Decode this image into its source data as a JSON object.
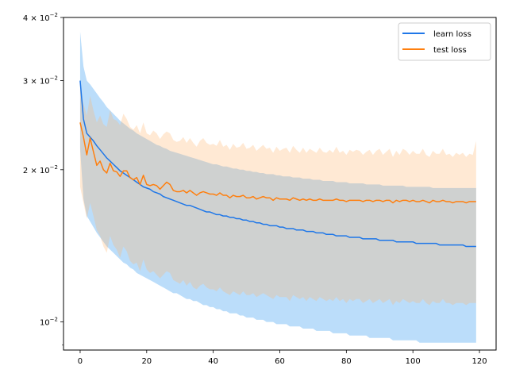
{
  "chart_data": {
    "type": "line",
    "title": "",
    "xlabel": "",
    "ylabel": "",
    "xlim": [
      -5,
      125
    ],
    "ylim": [
      0.0088,
      0.04
    ],
    "yscale": "log",
    "x_ticks": [
      0,
      20,
      40,
      60,
      80,
      100,
      120
    ],
    "x_tick_labels": [
      "0",
      "20",
      "40",
      "60",
      "80",
      "100",
      "120"
    ],
    "y_ticks": [
      0.01,
      0.02,
      0.03,
      0.04
    ],
    "y_tick_labels": [
      {
        "base": "10",
        "exp": "−2",
        "mantissa": ""
      },
      {
        "base": "10",
        "exp": "−2",
        "mantissa": "2"
      },
      {
        "base": "10",
        "exp": "−2",
        "mantissa": "3"
      },
      {
        "base": "10",
        "exp": "−2",
        "mantissa": "4"
      }
    ],
    "grid": false,
    "legend_position": "top-right",
    "x": [
      0,
      1,
      2,
      3,
      4,
      5,
      6,
      7,
      8,
      9,
      10,
      11,
      12,
      13,
      14,
      15,
      16,
      17,
      18,
      19,
      20,
      21,
      22,
      23,
      24,
      25,
      26,
      27,
      28,
      29,
      30,
      31,
      32,
      33,
      34,
      35,
      36,
      37,
      38,
      39,
      40,
      41,
      42,
      43,
      44,
      45,
      46,
      47,
      48,
      49,
      50,
      51,
      52,
      53,
      54,
      55,
      56,
      57,
      58,
      59,
      60,
      61,
      62,
      63,
      64,
      65,
      66,
      67,
      68,
      69,
      70,
      71,
      72,
      73,
      74,
      75,
      76,
      77,
      78,
      79,
      80,
      81,
      82,
      83,
      84,
      85,
      86,
      87,
      88,
      89,
      90,
      91,
      92,
      93,
      94,
      95,
      96,
      97,
      98,
      99,
      100,
      101,
      102,
      103,
      104,
      105,
      106,
      107,
      108,
      109,
      110,
      111,
      112,
      113,
      114,
      115,
      116,
      117,
      118,
      119
    ],
    "series": [
      {
        "name": "learn loss",
        "color": "#1f77e8",
        "band_color": "#1f8ff0",
        "values": [
          0.03,
          0.0252,
          0.0236,
          0.0232,
          0.0228,
          0.0223,
          0.0219,
          0.0215,
          0.0211,
          0.0208,
          0.0205,
          0.0202,
          0.0199,
          0.0197,
          0.0195,
          0.0193,
          0.0191,
          0.0189,
          0.0187,
          0.0185,
          0.0184,
          0.0183,
          0.0181,
          0.018,
          0.0179,
          0.0177,
          0.0176,
          0.0175,
          0.0174,
          0.0173,
          0.0172,
          0.0171,
          0.017,
          0.017,
          0.0169,
          0.0168,
          0.0167,
          0.0166,
          0.0165,
          0.0165,
          0.0164,
          0.0163,
          0.0163,
          0.0162,
          0.0162,
          0.0161,
          0.0161,
          0.016,
          0.016,
          0.0159,
          0.0159,
          0.0158,
          0.0158,
          0.0157,
          0.0157,
          0.0156,
          0.0156,
          0.0155,
          0.0155,
          0.0155,
          0.0154,
          0.0154,
          0.0153,
          0.0153,
          0.0153,
          0.0152,
          0.0152,
          0.0152,
          0.0151,
          0.0151,
          0.0151,
          0.015,
          0.015,
          0.015,
          0.0149,
          0.0149,
          0.0149,
          0.0148,
          0.0148,
          0.0148,
          0.0148,
          0.0147,
          0.0147,
          0.0147,
          0.0147,
          0.0146,
          0.0146,
          0.0146,
          0.0146,
          0.0146,
          0.0145,
          0.0145,
          0.0145,
          0.0145,
          0.0145,
          0.0144,
          0.0144,
          0.0144,
          0.0144,
          0.0144,
          0.0144,
          0.0143,
          0.0143,
          0.0143,
          0.0143,
          0.0143,
          0.0143,
          0.0143,
          0.0142,
          0.0142,
          0.0142,
          0.0142,
          0.0142,
          0.0142,
          0.0142,
          0.0142,
          0.0141,
          0.0141,
          0.0141,
          0.0141
        ],
        "lower": [
          0.022,
          0.0175,
          0.0162,
          0.0158,
          0.0154,
          0.015,
          0.0147,
          0.0144,
          0.0141,
          0.0139,
          0.0137,
          0.0135,
          0.0133,
          0.0131,
          0.013,
          0.0128,
          0.0127,
          0.0125,
          0.0124,
          0.0123,
          0.0122,
          0.0121,
          0.012,
          0.0119,
          0.0118,
          0.0117,
          0.0116,
          0.0115,
          0.0114,
          0.0114,
          0.0113,
          0.0112,
          0.0111,
          0.0111,
          0.011,
          0.011,
          0.0109,
          0.0108,
          0.0108,
          0.0107,
          0.0107,
          0.0106,
          0.0106,
          0.0105,
          0.0105,
          0.0104,
          0.0104,
          0.0104,
          0.0103,
          0.0103,
          0.0102,
          0.0102,
          0.0102,
          0.0101,
          0.0101,
          0.0101,
          0.01,
          0.01,
          0.01,
          0.0099,
          0.0099,
          0.0099,
          0.0099,
          0.0098,
          0.0098,
          0.0098,
          0.0098,
          0.0097,
          0.0097,
          0.0097,
          0.0097,
          0.0096,
          0.0096,
          0.0096,
          0.0096,
          0.0096,
          0.0095,
          0.0095,
          0.0095,
          0.0095,
          0.0095,
          0.0094,
          0.0094,
          0.0094,
          0.0094,
          0.0094,
          0.0094,
          0.0093,
          0.0093,
          0.0093,
          0.0093,
          0.0093,
          0.0093,
          0.0093,
          0.0092,
          0.0092,
          0.0092,
          0.0092,
          0.0092,
          0.0092,
          0.0092,
          0.0092,
          0.0091,
          0.0091,
          0.0091,
          0.0091,
          0.0091,
          0.0091,
          0.0091,
          0.0091,
          0.0091,
          0.0091,
          0.0091,
          0.0091,
          0.0091,
          0.0091,
          0.0091,
          0.0091,
          0.0091,
          0.0091
        ],
        "upper": [
          0.0375,
          0.032,
          0.03,
          0.0295,
          0.0289,
          0.0283,
          0.0277,
          0.0272,
          0.0266,
          0.0262,
          0.0258,
          0.0254,
          0.025,
          0.0247,
          0.0244,
          0.0241,
          0.0239,
          0.0236,
          0.0234,
          0.0232,
          0.023,
          0.0228,
          0.0226,
          0.0224,
          0.0223,
          0.0221,
          0.022,
          0.0218,
          0.0217,
          0.0216,
          0.0215,
          0.0214,
          0.0213,
          0.0212,
          0.0211,
          0.021,
          0.0209,
          0.0208,
          0.0207,
          0.0206,
          0.0205,
          0.0205,
          0.0204,
          0.0203,
          0.0203,
          0.0202,
          0.0201,
          0.0201,
          0.02,
          0.02,
          0.0199,
          0.0199,
          0.0198,
          0.0198,
          0.0197,
          0.0197,
          0.0196,
          0.0196,
          0.0196,
          0.0195,
          0.0195,
          0.0194,
          0.0194,
          0.0194,
          0.0193,
          0.0193,
          0.0193,
          0.0192,
          0.0192,
          0.0192,
          0.0191,
          0.0191,
          0.0191,
          0.019,
          0.019,
          0.019,
          0.019,
          0.0189,
          0.0189,
          0.0189,
          0.0189,
          0.0188,
          0.0188,
          0.0188,
          0.0188,
          0.0188,
          0.0187,
          0.0187,
          0.0187,
          0.0187,
          0.0187,
          0.0186,
          0.0186,
          0.0186,
          0.0186,
          0.0186,
          0.0186,
          0.0186,
          0.0185,
          0.0185,
          0.0185,
          0.0185,
          0.0185,
          0.0185,
          0.0185,
          0.0185,
          0.0184,
          0.0184,
          0.0184,
          0.0184,
          0.0184,
          0.0184,
          0.0184,
          0.0184,
          0.0184,
          0.0184,
          0.0184,
          0.0184,
          0.0184,
          0.0184
        ]
      },
      {
        "name": "test loss",
        "color": "#ff7f0e",
        "band_color": "#ffb670",
        "values": [
          0.0248,
          0.0232,
          0.0214,
          0.0231,
          0.0217,
          0.0204,
          0.0208,
          0.02,
          0.0197,
          0.0206,
          0.0199,
          0.0198,
          0.0194,
          0.0199,
          0.0199,
          0.0193,
          0.0191,
          0.0193,
          0.0187,
          0.0195,
          0.0187,
          0.0186,
          0.0187,
          0.0186,
          0.0183,
          0.0186,
          0.0189,
          0.0187,
          0.0182,
          0.0181,
          0.0181,
          0.0182,
          0.018,
          0.0182,
          0.018,
          0.0178,
          0.018,
          0.0181,
          0.018,
          0.0179,
          0.0179,
          0.0178,
          0.018,
          0.0178,
          0.0178,
          0.0176,
          0.0178,
          0.0177,
          0.0177,
          0.0178,
          0.0176,
          0.0176,
          0.0177,
          0.0175,
          0.0176,
          0.0177,
          0.0176,
          0.0176,
          0.0174,
          0.0176,
          0.0175,
          0.0175,
          0.0175,
          0.0174,
          0.0176,
          0.0175,
          0.0174,
          0.0175,
          0.0174,
          0.0175,
          0.0174,
          0.0174,
          0.0175,
          0.0174,
          0.0174,
          0.0174,
          0.0174,
          0.0175,
          0.0174,
          0.0174,
          0.0173,
          0.0174,
          0.0174,
          0.0174,
          0.0174,
          0.0173,
          0.0174,
          0.0174,
          0.0173,
          0.0174,
          0.0174,
          0.0173,
          0.0174,
          0.0174,
          0.0172,
          0.0174,
          0.0173,
          0.0174,
          0.0174,
          0.0173,
          0.0174,
          0.0173,
          0.0173,
          0.0174,
          0.0173,
          0.0172,
          0.0174,
          0.0173,
          0.0173,
          0.0174,
          0.0173,
          0.0173,
          0.0172,
          0.0173,
          0.0173,
          0.0173,
          0.0172,
          0.0173,
          0.0173,
          0.0173
        ],
        "lower": [
          0.0185,
          0.0172,
          0.016,
          0.0172,
          0.0162,
          0.0152,
          0.0148,
          0.0141,
          0.0137,
          0.0148,
          0.0142,
          0.0139,
          0.0134,
          0.0141,
          0.0138,
          0.0132,
          0.013,
          0.0131,
          0.0126,
          0.0133,
          0.0127,
          0.0125,
          0.0126,
          0.0124,
          0.0122,
          0.0124,
          0.0126,
          0.0125,
          0.0121,
          0.012,
          0.0119,
          0.0121,
          0.0118,
          0.012,
          0.0117,
          0.0116,
          0.0118,
          0.0119,
          0.0117,
          0.0116,
          0.0116,
          0.0115,
          0.0117,
          0.0115,
          0.0114,
          0.0113,
          0.0115,
          0.0114,
          0.0113,
          0.0115,
          0.0113,
          0.0113,
          0.0114,
          0.0112,
          0.0113,
          0.0114,
          0.0113,
          0.0112,
          0.0111,
          0.0113,
          0.0112,
          0.0112,
          0.0112,
          0.011,
          0.0113,
          0.0112,
          0.0111,
          0.0112,
          0.011,
          0.0112,
          0.0111,
          0.011,
          0.0112,
          0.0111,
          0.011,
          0.0111,
          0.011,
          0.0112,
          0.011,
          0.0111,
          0.0109,
          0.0111,
          0.011,
          0.0111,
          0.0111,
          0.0109,
          0.011,
          0.0111,
          0.0109,
          0.011,
          0.0111,
          0.0109,
          0.011,
          0.0111,
          0.0108,
          0.011,
          0.0109,
          0.0111,
          0.011,
          0.0109,
          0.011,
          0.0109,
          0.0109,
          0.0111,
          0.0109,
          0.0108,
          0.011,
          0.0109,
          0.0109,
          0.0111,
          0.0109,
          0.0109,
          0.0108,
          0.0109,
          0.0109,
          0.0109,
          0.0108,
          0.0109,
          0.0109,
          0.0109
        ],
        "upper": [
          0.029,
          0.027,
          0.0256,
          0.028,
          0.0262,
          0.0248,
          0.0256,
          0.0246,
          0.0243,
          0.0262,
          0.0252,
          0.025,
          0.0245,
          0.0258,
          0.0252,
          0.0243,
          0.024,
          0.0245,
          0.0236,
          0.0248,
          0.0236,
          0.0234,
          0.0239,
          0.0236,
          0.023,
          0.0235,
          0.0238,
          0.0236,
          0.0229,
          0.0227,
          0.0228,
          0.0232,
          0.0226,
          0.0231,
          0.0226,
          0.0222,
          0.0228,
          0.0231,
          0.0226,
          0.0224,
          0.0225,
          0.0223,
          0.0229,
          0.0222,
          0.0224,
          0.0219,
          0.0225,
          0.0221,
          0.0222,
          0.0226,
          0.022,
          0.0221,
          0.0224,
          0.0218,
          0.0221,
          0.0224,
          0.022,
          0.0221,
          0.0216,
          0.0222,
          0.0218,
          0.022,
          0.0221,
          0.0216,
          0.0223,
          0.0219,
          0.0216,
          0.0221,
          0.0216,
          0.022,
          0.0218,
          0.0216,
          0.0221,
          0.0217,
          0.0216,
          0.0219,
          0.0216,
          0.0222,
          0.0216,
          0.0218,
          0.0214,
          0.0219,
          0.0217,
          0.0219,
          0.0218,
          0.0214,
          0.0217,
          0.0219,
          0.0214,
          0.0218,
          0.022,
          0.0214,
          0.0217,
          0.022,
          0.0212,
          0.0218,
          0.0214,
          0.022,
          0.0218,
          0.0214,
          0.0218,
          0.0215,
          0.0215,
          0.022,
          0.0214,
          0.0212,
          0.0218,
          0.0215,
          0.0215,
          0.022,
          0.0214,
          0.0215,
          0.0212,
          0.0216,
          0.0214,
          0.0216,
          0.0212,
          0.0215,
          0.0214,
          0.0228
        ]
      }
    ]
  }
}
